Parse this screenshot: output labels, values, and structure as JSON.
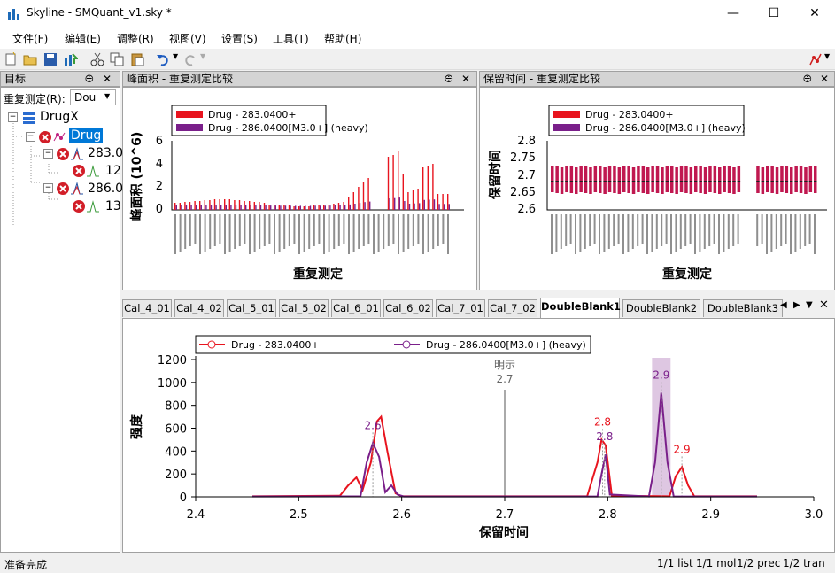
{
  "window": {
    "title": "Skyline - SMQuant_v1.sky *"
  },
  "menu": [
    "文件(F)",
    "编辑(E)",
    "调整(R)",
    "视图(V)",
    "设置(S)",
    "工具(T)",
    "帮助(H)"
  ],
  "targets": {
    "header": "目标",
    "replicate_label": "重复测定(R):",
    "replicate_value": "Dou",
    "tree": {
      "root": "DrugX",
      "molecule": "Drug",
      "precursors": [
        {
          "label": "283.0",
          "transition": "12"
        },
        {
          "label": "286.0",
          "transition": "13"
        }
      ]
    }
  },
  "peak_area_panel": {
    "header": "峰面积 - 重复测定比较",
    "legend": [
      "Drug - 283.0400+",
      "Drug - 286.0400[M3.0+] (heavy)"
    ],
    "ylabel": "峰面积 (10^6)",
    "xlabel": "重复测定",
    "yticks": [
      "6",
      "4",
      "2",
      "0"
    ]
  },
  "rt_panel": {
    "header": "保留时间 - 重复测定比较",
    "legend": [
      "Drug - 283.0400+",
      "Drug - 286.0400[M3.0+] (heavy)"
    ],
    "ylabel": "保留时间",
    "xlabel": "重复测定",
    "yticks": [
      "2.8",
      "2.75",
      "2.7",
      "2.65",
      "2.6"
    ]
  },
  "tabs": [
    "Cal_4_01",
    "Cal_4_02",
    "Cal_5_01",
    "Cal_5_02",
    "Cal_6_01",
    "Cal_6_02",
    "Cal_7_01",
    "Cal_7_02",
    "DoubleBlank1",
    "DoubleBlank2",
    "DoubleBlank3"
  ],
  "active_tab": "DoubleBlank1",
  "chart_data": {
    "type": "line",
    "legend": [
      "Drug - 283.0400+",
      "Drug - 286.0400[M3.0+] (heavy)"
    ],
    "xlabel": "保留时间",
    "ylabel": "强度",
    "xlim": [
      2.4,
      3.0
    ],
    "ylim": [
      0,
      1200
    ],
    "xticks": [
      "2.4",
      "2.5",
      "2.6",
      "2.7",
      "2.8",
      "2.9",
      "3.0"
    ],
    "yticks": [
      "0",
      "200",
      "400",
      "600",
      "800",
      "1000",
      "1200"
    ],
    "annotation": {
      "text": "明示",
      "value": "2.7"
    },
    "series": [
      {
        "name": "Drug - 283.0400+",
        "color": "#e8141e",
        "x": [
          2.455,
          2.54,
          2.548,
          2.556,
          2.562,
          2.57,
          2.576,
          2.58,
          2.586,
          2.594,
          2.6,
          2.78,
          2.79,
          2.794,
          2.798,
          2.804,
          2.86,
          2.866,
          2.872,
          2.878,
          2.884,
          2.945
        ],
        "y": [
          5,
          10,
          100,
          170,
          60,
          300,
          660,
          700,
          400,
          30,
          5,
          5,
          300,
          500,
          450,
          10,
          5,
          180,
          260,
          100,
          5,
          5
        ],
        "labels": [
          {
            "x": 2.795,
            "y": 500,
            "text": "2.8"
          },
          {
            "x": 2.872,
            "y": 260,
            "text": "2.9"
          }
        ]
      },
      {
        "name": "Drug - 286.0400[M3.0+] (heavy)",
        "color": "#7a1f8a",
        "x": [
          2.455,
          2.56,
          2.566,
          2.572,
          2.578,
          2.584,
          2.59,
          2.596,
          2.602,
          2.79,
          2.794,
          2.798,
          2.802,
          2.84,
          2.846,
          2.852,
          2.858,
          2.864,
          2.945
        ],
        "y": [
          3,
          5,
          300,
          470,
          350,
          40,
          100,
          20,
          3,
          3,
          200,
          370,
          20,
          3,
          300,
          910,
          300,
          3,
          3
        ],
        "labels": [
          {
            "x": 2.572,
            "y": 470,
            "text": "2.6"
          },
          {
            "x": 2.797,
            "y": 370,
            "text": "2.8"
          },
          {
            "x": 2.852,
            "y": 910,
            "text": "2.9"
          }
        ]
      }
    ]
  },
  "status": {
    "left": "准备完成",
    "right": [
      "1/1 list",
      "1/1 mol",
      "1/2 prec",
      "1/2 tran"
    ]
  }
}
